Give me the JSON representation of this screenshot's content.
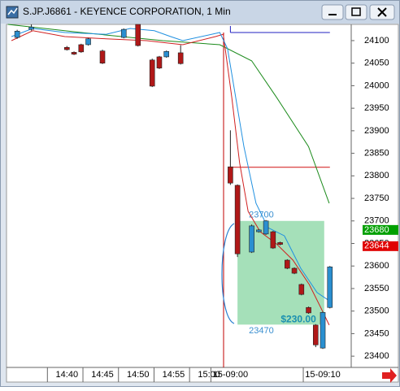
{
  "chart_data": {
    "type": "candlestick",
    "title": "S.JP.J6861 - KEYENCE CORPORATION, 1 Min",
    "xlim": [
      -0.5,
      48
    ],
    "ylim": [
      23375,
      24136
    ],
    "yticks": [
      23400,
      23450,
      23500,
      23550,
      23600,
      23650,
      23700,
      23750,
      23800,
      23850,
      23900,
      23950,
      24000,
      24050,
      24100
    ],
    "xticks": [
      {
        "value": 8,
        "label": "14:40"
      },
      {
        "value": 13,
        "label": "14:45"
      },
      {
        "value": 18,
        "label": "14:50"
      },
      {
        "value": 23,
        "label": "14:55"
      },
      {
        "value": 28,
        "label": "15:00"
      },
      {
        "value": 31,
        "label": "15-09:00"
      },
      {
        "value": 44,
        "label": "15-09:10"
      }
    ],
    "up_color": "#2a8fd0",
    "down_color": "#b01818",
    "candles": {
      "x": [
        1,
        3,
        8,
        9,
        10,
        11,
        13,
        16,
        18,
        20,
        21,
        22,
        24,
        31,
        32,
        34,
        35,
        36,
        37,
        38,
        39,
        40,
        41,
        42,
        43,
        44,
        45
      ],
      "open": [
        24107,
        24125,
        24085,
        24074,
        24091,
        24091,
        24077,
        24107,
        24136,
        24057,
        24064,
        24064,
        24073,
        23820,
        23779,
        23631,
        23676,
        23671,
        23676,
        23652,
        23613,
        23595,
        23559,
        23508,
        23469,
        23418,
        23508
      ],
      "high": [
        24124,
        24136,
        24088,
        24076,
        24093,
        24106,
        24080,
        24127,
        24136,
        24060,
        24066,
        24078,
        24090,
        23901,
        23781,
        23692,
        23682,
        23702,
        23678,
        23654,
        23615,
        23597,
        23561,
        23510,
        23471,
        23499,
        23600
      ],
      "low": [
        24104,
        24122,
        24078,
        24068,
        24073,
        24089,
        24048,
        24105,
        24087,
        23997,
        24037,
        24062,
        24047,
        23780,
        23620,
        23629,
        23674,
        23669,
        23638,
        23646,
        23593,
        23582,
        23535,
        23494,
        23420,
        23416,
        23506
      ],
      "close": [
        24121,
        24130,
        24080,
        24070,
        24075,
        24104,
        24050,
        24125,
        24089,
        23999,
        24039,
        24076,
        24049,
        23784,
        23627,
        23689,
        23680,
        23700,
        23640,
        23648,
        23595,
        23584,
        23537,
        23496,
        23425,
        23497,
        23598
      ]
    },
    "lines": [
      {
        "color": "#1a8a1a",
        "x": [
          -0.3,
          10,
          21.5,
          29.5,
          34,
          37.5,
          42,
          44.9
        ],
        "values": [
          24136,
          24118,
          24100,
          24091,
          24055,
          23974,
          23865,
          23739
        ]
      },
      {
        "color": "#d02020",
        "x": [
          0.2,
          3.2,
          7.7,
          13.5,
          19.2,
          24.3,
          28.9,
          30,
          31.2,
          32.3,
          33.5,
          35.2,
          37.5,
          39.8,
          42.1,
          43.8,
          44.9
        ],
        "values": [
          24100,
          24122,
          24109,
          24104,
          24100,
          24091,
          24109,
          24114,
          23974,
          23829,
          23721,
          23676,
          23649,
          23613,
          23559,
          23505,
          23469
        ]
      },
      {
        "color": "#2090e0",
        "x": [
          0.2,
          3.2,
          7.7,
          13.5,
          16.9,
          20.3,
          22.6,
          24.3,
          29.5,
          30.6,
          32.9,
          34.6,
          36.3,
          38.6,
          40.9,
          43.2,
          44.9
        ],
        "values": [
          24109,
          24127,
          24118,
          24114,
          24127,
          24122,
          24109,
          24100,
          24118,
          24082,
          23865,
          23739,
          23685,
          23667,
          23595,
          23541,
          23523
        ]
      }
    ],
    "levels": [
      {
        "value": 24118,
        "color": "#2020c0",
        "x": [
          31,
          45
        ]
      },
      {
        "value": 23819,
        "color": "#d01010",
        "x": [
          31,
          45
        ]
      }
    ],
    "range_box": {
      "top": 23700,
      "bottom": 23470,
      "x": [
        32,
        44.2
      ],
      "color": "#8fd8a8",
      "amount": {
        "value": 230,
        "label": "$230.00"
      }
    },
    "price_markers": [
      {
        "value": 23680,
        "color": "#00a000"
      },
      {
        "value": 23644,
        "color": "#e00000"
      }
    ]
  }
}
